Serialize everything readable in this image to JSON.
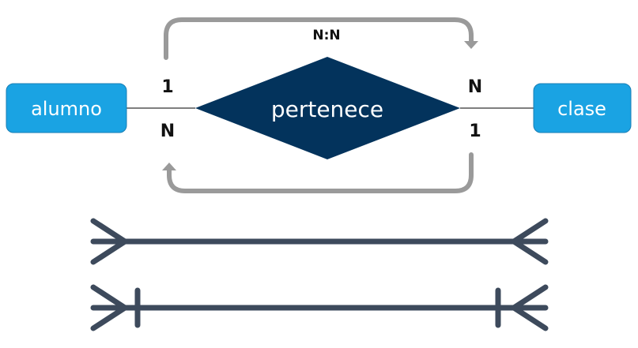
{
  "diagram": {
    "entities": {
      "left": {
        "label": "alumno",
        "fill": "#1aa3e3"
      },
      "right": {
        "label": "clase",
        "fill": "#1aa3e3"
      }
    },
    "relationship": {
      "label": "pertenece",
      "fill": "#03335c"
    },
    "cardinalities": {
      "summary": "N:N",
      "left_top": "1",
      "left_bottom": "N",
      "right_top": "N",
      "right_bottom": "1"
    },
    "colors": {
      "arrow": "#9a9a9a",
      "connector": "#555555",
      "notation": "#3d4a5c"
    },
    "notation": {
      "line1": "many-to-many",
      "line2": "one-and-many-to-one-and-many"
    }
  }
}
